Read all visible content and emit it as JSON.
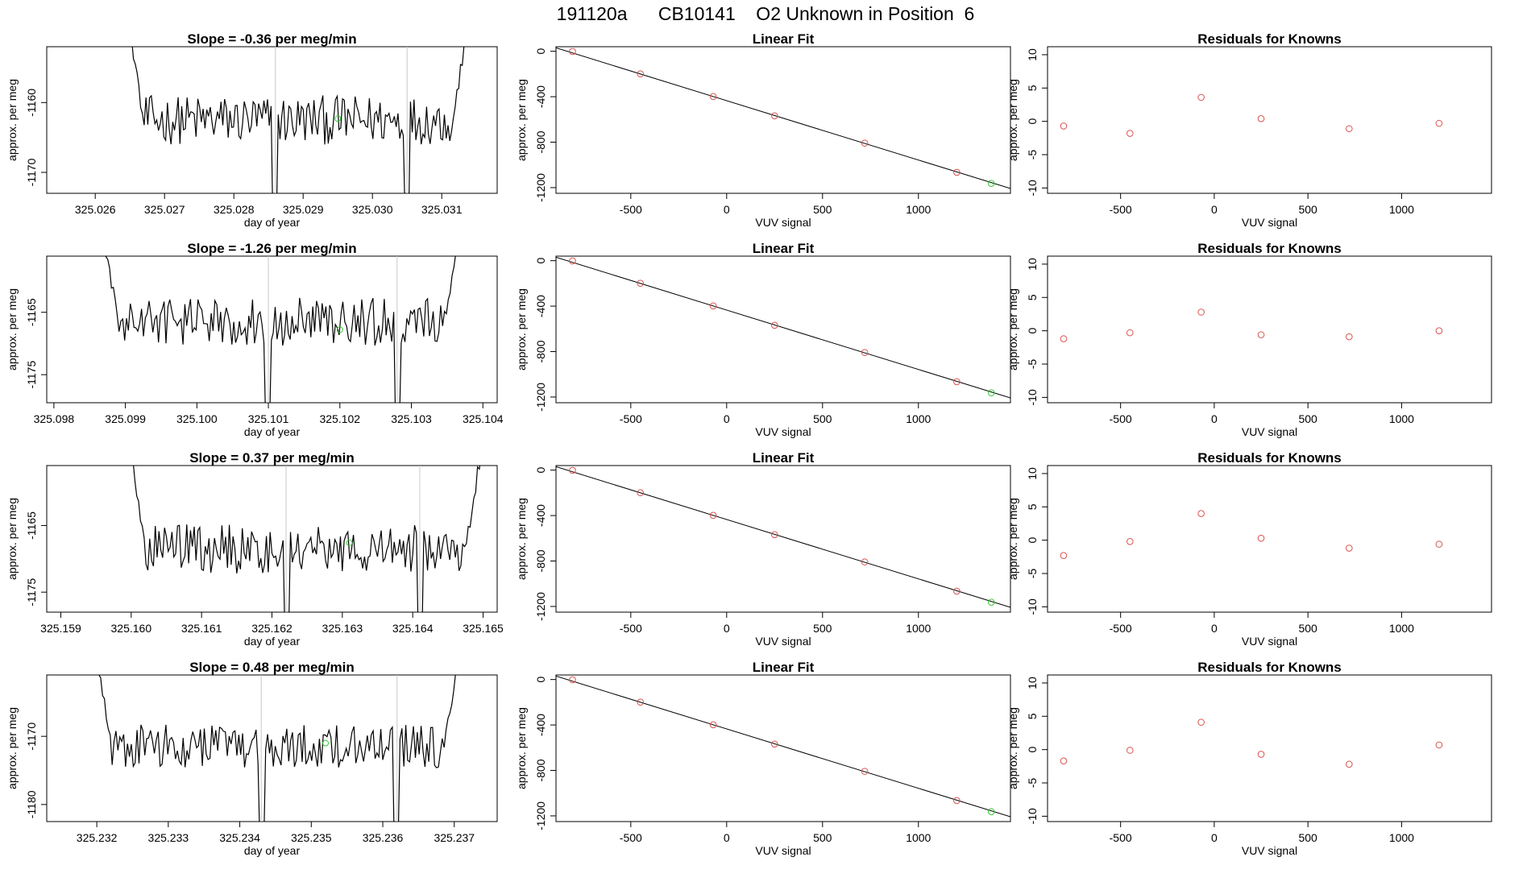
{
  "figure_title": "191120a      CB10141    O2 Unknown in Position  6",
  "colors": {
    "known": "#d9534f",
    "unknown": "#33cc33",
    "line": "#000000",
    "vline": "#c8c8c8"
  },
  "chart_data": [
    {
      "type": "line",
      "row": 1,
      "column": "slope",
      "title": "Slope =  -0.36  per meg/min",
      "xlabel": "day of year",
      "ylabel": "approx. per meg",
      "xlim": [
        325.0253,
        325.0318
      ],
      "ylim": [
        -1173,
        -1152
      ],
      "xticks": [
        "325.026",
        "325.027",
        "325.028",
        "325.029",
        "325.030",
        "325.031"
      ],
      "yticks": [
        "-1160",
        "-1170"
      ],
      "x_start": 325.0265,
      "x_end": 325.0314,
      "mean": -1162.5,
      "noise": 2.2,
      "vlines": [
        325.0286,
        325.0305
      ],
      "unknown_point": [
        325.0295,
        -1162.3
      ]
    },
    {
      "type": "scatter",
      "row": 1,
      "column": "fit",
      "title": "Linear Fit",
      "xlabel": "VUV signal",
      "ylabel": "approx. per meg",
      "xlim": [
        -890,
        1480
      ],
      "ylim": [
        -1250,
        40
      ],
      "xticks": [
        "-500",
        "0",
        "500",
        "1000"
      ],
      "yticks": [
        "0",
        "-400",
        "-800",
        "-1200"
      ],
      "line": [
        [
          -890,
          30
        ],
        [
          1480,
          -1208
        ]
      ],
      "known_x": [
        -804,
        -450,
        -70,
        250,
        720,
        1200
      ],
      "known_y": [
        -2,
        -199,
        -398,
        -568,
        -808,
        -1065
      ],
      "unknown": [
        1380,
        -1163
      ]
    },
    {
      "type": "scatter",
      "row": 1,
      "column": "residuals",
      "title": "Residuals for Knowns",
      "xlabel": "VUV signal",
      "ylabel": "approx. per meg",
      "xlim": [
        -890,
        1480
      ],
      "ylim": [
        -10.8,
        11.2
      ],
      "xticks": [
        "-500",
        "0",
        "500",
        "1000"
      ],
      "yticks": [
        "10",
        "5",
        "0",
        "-5",
        "-10"
      ],
      "x": [
        -804,
        -450,
        -70,
        250,
        720,
        1200
      ],
      "residuals": [
        -0.7,
        -1.8,
        3.6,
        0.4,
        -1.1,
        -0.3
      ]
    },
    {
      "type": "line",
      "row": 2,
      "column": "slope",
      "title": "Slope =  -1.26  per meg/min",
      "xlabel": "day of year",
      "ylabel": "approx. per meg",
      "xlim": [
        325.0979,
        325.1042
      ],
      "ylim": [
        -1179.5,
        -1156
      ],
      "xticks": [
        "325.098",
        "325.099",
        "325.100",
        "325.101",
        "325.102",
        "325.103",
        "325.104"
      ],
      "yticks": [
        "-1165",
        "-1175"
      ],
      "x_start": 325.0987,
      "x_end": 325.1037,
      "mean": -1166.5,
      "noise": 2.4,
      "vlines": [
        325.101,
        325.1028
      ],
      "unknown_point": [
        325.102,
        -1167.8
      ]
    },
    {
      "type": "scatter",
      "row": 2,
      "column": "fit",
      "title": "Linear Fit",
      "xlabel": "VUV signal",
      "ylabel": "approx. per meg",
      "xlim": [
        -890,
        1480
      ],
      "ylim": [
        -1250,
        40
      ],
      "xticks": [
        "-500",
        "0",
        "500",
        "1000"
      ],
      "yticks": [
        "0",
        "-400",
        "-800",
        "-1200"
      ],
      "line": [
        [
          -890,
          30
        ],
        [
          1480,
          -1208
        ]
      ],
      "known_x": [
        -804,
        -450,
        -70,
        250,
        720,
        1200
      ],
      "known_y": [
        -2,
        -199,
        -398,
        -568,
        -808,
        -1065
      ],
      "unknown": [
        1380,
        -1163
      ]
    },
    {
      "type": "scatter",
      "row": 2,
      "column": "residuals",
      "title": "Residuals for Knowns",
      "xlabel": "VUV signal",
      "ylabel": "approx. per meg",
      "xlim": [
        -890,
        1480
      ],
      "ylim": [
        -10.8,
        11.2
      ],
      "xticks": [
        "-500",
        "0",
        "500",
        "1000"
      ],
      "yticks": [
        "10",
        "5",
        "0",
        "-5",
        "-10"
      ],
      "x": [
        -804,
        -450,
        -70,
        250,
        720,
        1200
      ],
      "residuals": [
        -1.2,
        -0.3,
        2.8,
        -0.6,
        -0.9,
        0.0
      ]
    },
    {
      "type": "line",
      "row": 3,
      "column": "slope",
      "title": "Slope =  0.37  per meg/min",
      "xlabel": "day of year",
      "ylabel": "approx. per meg",
      "xlim": [
        325.1588,
        325.1652
      ],
      "ylim": [
        -1178,
        -1156
      ],
      "xticks": [
        "325.159",
        "325.160",
        "325.161",
        "325.162",
        "325.163",
        "325.164",
        "325.165"
      ],
      "yticks": [
        "-1165",
        "-1175"
      ],
      "x_start": 325.16,
      "x_end": 325.165,
      "mean": -1168.5,
      "noise": 2.3,
      "vlines": [
        325.1622,
        325.1641
      ],
      "unknown_point": [
        325.1631,
        -1167.6
      ]
    },
    {
      "type": "scatter",
      "row": 3,
      "column": "fit",
      "title": "Linear Fit",
      "xlabel": "VUV signal",
      "ylabel": "approx. per meg",
      "xlim": [
        -890,
        1480
      ],
      "ylim": [
        -1250,
        40
      ],
      "xticks": [
        "-500",
        "0",
        "500",
        "1000"
      ],
      "yticks": [
        "0",
        "-400",
        "-800",
        "-1200"
      ],
      "line": [
        [
          -890,
          30
        ],
        [
          1480,
          -1208
        ]
      ],
      "known_x": [
        -804,
        -450,
        -70,
        250,
        720,
        1200
      ],
      "known_y": [
        -2,
        -199,
        -398,
        -568,
        -808,
        -1065
      ],
      "unknown": [
        1380,
        -1163
      ]
    },
    {
      "type": "scatter",
      "row": 3,
      "column": "residuals",
      "title": "Residuals for Knowns",
      "xlabel": "VUV signal",
      "ylabel": "approx. per meg",
      "xlim": [
        -890,
        1480
      ],
      "ylim": [
        -10.8,
        11.2
      ],
      "xticks": [
        "-500",
        "0",
        "500",
        "1000"
      ],
      "yticks": [
        "10",
        "5",
        "0",
        "-5",
        "-10"
      ],
      "x": [
        -804,
        -450,
        -70,
        250,
        720,
        1200
      ],
      "residuals": [
        -2.3,
        -0.2,
        4.0,
        0.3,
        -1.2,
        -0.6
      ]
    },
    {
      "type": "line",
      "row": 4,
      "column": "slope",
      "title": "Slope =  0.48  per meg/min",
      "xlabel": "day of year",
      "ylabel": "approx. per meg",
      "xlim": [
        325.2313,
        325.2376
      ],
      "ylim": [
        -1182.5,
        -1161
      ],
      "xticks": [
        "325.232",
        "325.233",
        "325.234",
        "325.235",
        "325.236",
        "325.237"
      ],
      "yticks": [
        "-1170",
        "-1180"
      ],
      "x_start": 325.232,
      "x_end": 325.2371,
      "mean": -1171.5,
      "noise": 2.0,
      "vlines": [
        325.2343,
        325.2362
      ],
      "unknown_point": [
        325.2352,
        -1171
      ]
    },
    {
      "type": "scatter",
      "row": 4,
      "column": "fit",
      "title": "Linear Fit",
      "xlabel": "VUV signal",
      "ylabel": "approx. per meg",
      "xlim": [
        -890,
        1480
      ],
      "ylim": [
        -1250,
        40
      ],
      "xticks": [
        "-500",
        "0",
        "500",
        "1000"
      ],
      "yticks": [
        "0",
        "-400",
        "-800",
        "-1200"
      ],
      "line": [
        [
          -890,
          30
        ],
        [
          1480,
          -1208
        ]
      ],
      "known_x": [
        -804,
        -450,
        -70,
        250,
        720,
        1200
      ],
      "known_y": [
        -2,
        -199,
        -398,
        -568,
        -808,
        -1065
      ],
      "unknown": [
        1380,
        -1163
      ]
    },
    {
      "type": "scatter",
      "row": 4,
      "column": "residuals",
      "title": "Residuals for Knowns",
      "xlabel": "VUV signal",
      "ylabel": "approx. per meg",
      "xlim": [
        -890,
        1480
      ],
      "ylim": [
        -10.8,
        11.2
      ],
      "xticks": [
        "-500",
        "0",
        "500",
        "1000"
      ],
      "yticks": [
        "10",
        "5",
        "0",
        "-5",
        "-10"
      ],
      "x": [
        -804,
        -450,
        -70,
        250,
        720,
        1200
      ],
      "residuals": [
        -1.7,
        -0.1,
        4.1,
        -0.7,
        -2.2,
        0.7
      ]
    }
  ]
}
